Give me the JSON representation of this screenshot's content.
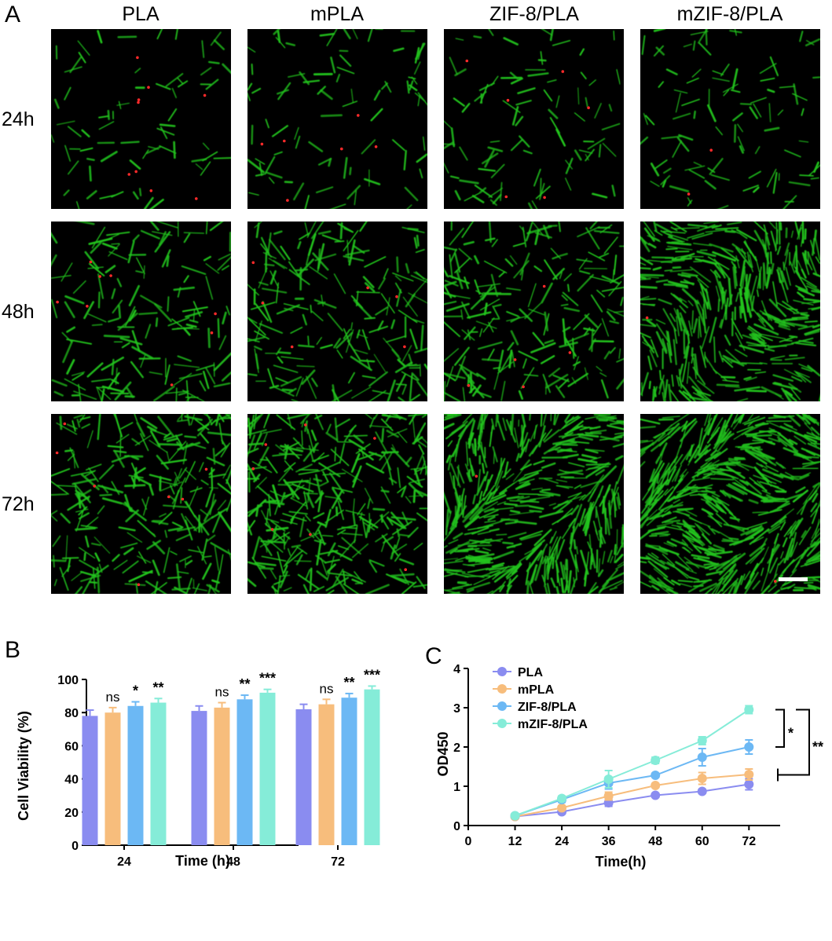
{
  "panel_a": {
    "letter": "A",
    "columns": [
      "PLA",
      "mPLA",
      "ZIF-8/PLA",
      "mZIF-8/PLA"
    ],
    "rows": [
      "24h",
      "48h",
      "72h"
    ],
    "colors": {
      "background": "#000000",
      "live": "#22c51e",
      "dead": "#ff2a2a",
      "scale_bar": "#ffffff"
    }
  },
  "colors": {
    "PLA": "#8a8cf0",
    "mPLA": "#f7bd7c",
    "ZIF-8/PLA": "#6cb8f4",
    "mZIF-8/PLA": "#85ecd8"
  },
  "chart_data": [
    {
      "panel": "B",
      "type": "bar",
      "xlabel": "Time (h)",
      "ylabel": "Cell Viability (%)",
      "ylim": [
        0,
        100
      ],
      "yticks": [
        0,
        20,
        40,
        60,
        80,
        100
      ],
      "categories": [
        "24",
        "48",
        "72"
      ],
      "series": [
        {
          "name": "PLA",
          "values": [
            78,
            81,
            82
          ],
          "errors": [
            3.5,
            3,
            3
          ]
        },
        {
          "name": "mPLA",
          "values": [
            80,
            83,
            85
          ],
          "errors": [
            3,
            3,
            3
          ]
        },
        {
          "name": "ZIF-8/PLA",
          "values": [
            84,
            88,
            89
          ],
          "errors": [
            2.5,
            2.5,
            2.5
          ]
        },
        {
          "name": "mZIF-8/PLA",
          "values": [
            86,
            92,
            94
          ],
          "errors": [
            2.5,
            2,
            2
          ]
        }
      ],
      "significance": [
        [
          "",
          "ns",
          "*",
          "**"
        ],
        [
          "",
          "ns",
          "**",
          "***"
        ],
        [
          "",
          "ns",
          "**",
          "***"
        ]
      ],
      "grid": false
    },
    {
      "panel": "C",
      "type": "line",
      "xlabel": "Time(h)",
      "ylabel": "OD450",
      "xlim": [
        0,
        80
      ],
      "ylim": [
        0,
        4
      ],
      "xticks": [
        0,
        12,
        24,
        36,
        48,
        60,
        72
      ],
      "yticks": [
        0,
        1,
        2,
        3,
        4
      ],
      "x": [
        12,
        24,
        36,
        48,
        60,
        72
      ],
      "series": [
        {
          "name": "PLA",
          "values": [
            0.23,
            0.35,
            0.58,
            0.77,
            0.87,
            1.05
          ],
          "errors": [
            0.04,
            0.05,
            0.09,
            0.04,
            0.05,
            0.14
          ]
        },
        {
          "name": "mPLA",
          "values": [
            0.23,
            0.45,
            0.75,
            1.02,
            1.2,
            1.3
          ],
          "errors": [
            0.04,
            0.05,
            0.1,
            0.05,
            0.15,
            0.14
          ]
        },
        {
          "name": "ZIF-8/PLA",
          "values": [
            0.25,
            0.66,
            1.08,
            1.28,
            1.74,
            2.0
          ],
          "errors": [
            0.04,
            0.07,
            0.15,
            0.05,
            0.22,
            0.18
          ]
        },
        {
          "name": "mZIF-8/PLA",
          "values": [
            0.25,
            0.69,
            1.18,
            1.66,
            2.16,
            2.95
          ],
          "errors": [
            0.04,
            0.06,
            0.22,
            0.08,
            0.1,
            0.1
          ]
        }
      ],
      "legend": "top-left",
      "brackets": [
        {
          "between": [
            "mZIF-8/PLA",
            "ZIF-8/PLA"
          ],
          "label": "*"
        },
        {
          "between": [
            "mZIF-8/PLA",
            "PLA"
          ],
          "label": "**"
        }
      ],
      "grid": false
    }
  ]
}
